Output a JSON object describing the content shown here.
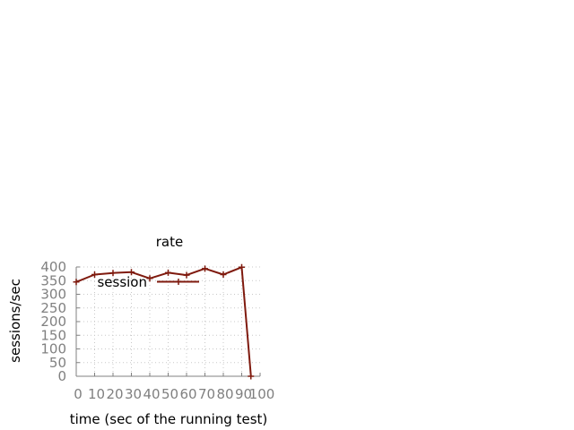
{
  "chart_data": {
    "type": "line",
    "title": "rate",
    "xlabel": "time (sec of the running test)",
    "ylabel": "sessions/sec",
    "xlim": [
      0,
      100
    ],
    "ylim": [
      0,
      400
    ],
    "x_ticks": [
      0,
      10,
      20,
      30,
      40,
      50,
      60,
      70,
      80,
      90,
      100
    ],
    "x_tick_labels": [
      "0",
      "10",
      "20",
      "30",
      "40",
      "50",
      "60",
      "70",
      "80",
      "90",
      "100"
    ],
    "y_ticks": [
      0,
      50,
      100,
      150,
      200,
      250,
      300,
      350,
      400
    ],
    "y_tick_labels": [
      "0",
      "50",
      "100",
      "150",
      "200",
      "250",
      "300",
      "350",
      "400"
    ],
    "grid": true,
    "legend_position": "top-left",
    "series": [
      {
        "name": "session",
        "color": "#7f1a0e",
        "x": [
          0,
          10,
          20,
          30,
          40,
          50,
          60,
          70,
          80,
          90,
          95
        ],
        "y": [
          345,
          372,
          378,
          381,
          358,
          379,
          370,
          394,
          372,
          399,
          0
        ]
      }
    ]
  }
}
